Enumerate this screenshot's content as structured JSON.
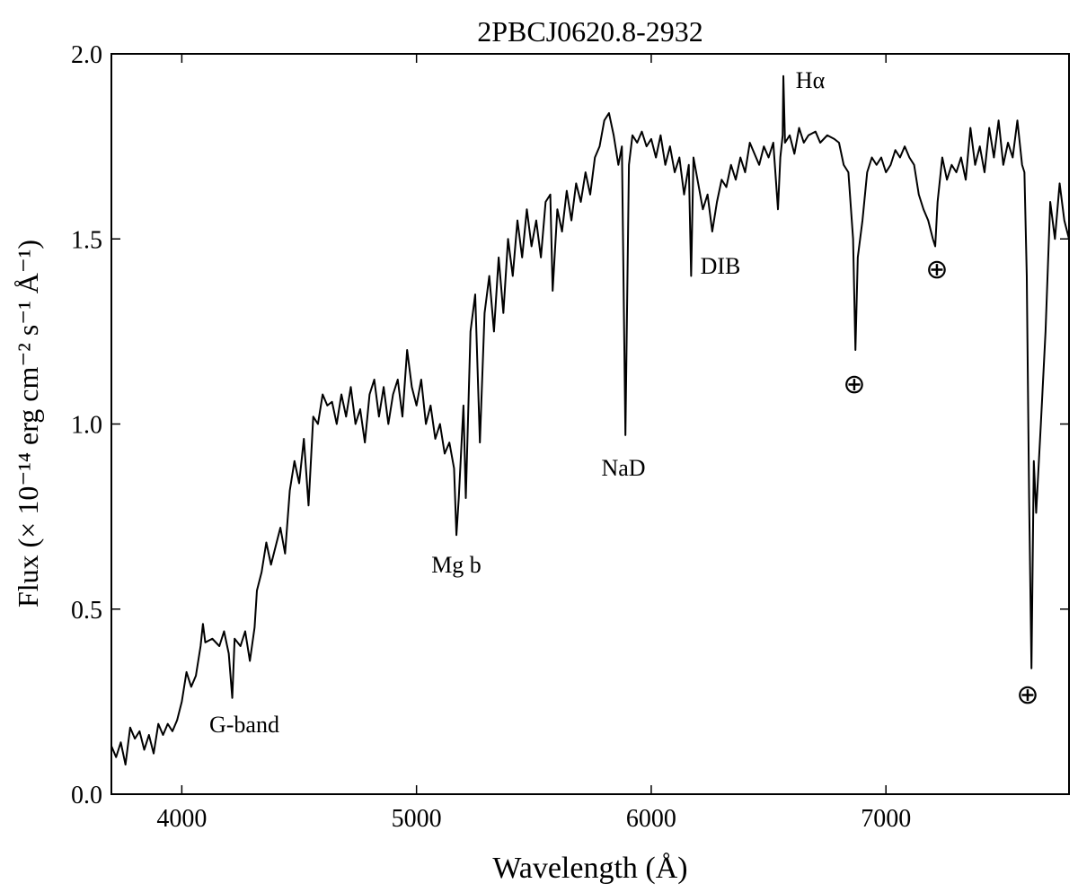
{
  "chart_data": {
    "type": "line",
    "title": "2PBCJ0620.8-2932",
    "x_label": "Wavelength (Å)",
    "y_label": "Flux (× 10⁻¹⁴ erg cm⁻² s⁻¹ Å⁻¹)",
    "color": "#000000",
    "xlim": [
      3700,
      7780
    ],
    "ylim": [
      0,
      2
    ],
    "xticks": [
      4000,
      5000,
      6000,
      7000
    ],
    "yticks": [
      {
        "value": 0,
        "label": "0.0"
      },
      {
        "value": 0.5,
        "label": "0.5"
      },
      {
        "value": 1,
        "label": "1.0"
      },
      {
        "value": 1.5,
        "label": "1.5"
      },
      {
        "value": 2,
        "label": "2.0"
      }
    ],
    "annotations": [
      "G-band",
      "Mg b",
      "NaD",
      "DIB",
      "Hα",
      "⊕",
      "⊕",
      "⊕"
    ],
    "x": [
      3700,
      3720,
      3740,
      3760,
      3780,
      3800,
      3820,
      3840,
      3860,
      3880,
      3900,
      3920,
      3940,
      3960,
      3980,
      4000,
      4020,
      4040,
      4060,
      4080,
      4090,
      4100,
      4130,
      4160,
      4180,
      4200,
      4215,
      4225,
      4250,
      4270,
      4290,
      4310,
      4320,
      4340,
      4360,
      4380,
      4400,
      4420,
      4440,
      4460,
      4480,
      4500,
      4520,
      4540,
      4560,
      4580,
      4600,
      4620,
      4640,
      4660,
      4680,
      4700,
      4720,
      4740,
      4760,
      4780,
      4800,
      4820,
      4840,
      4860,
      4880,
      4900,
      4920,
      4940,
      4960,
      4980,
      5000,
      5020,
      5040,
      5060,
      5080,
      5100,
      5120,
      5140,
      5160,
      5170,
      5180,
      5200,
      5210,
      5230,
      5250,
      5260,
      5270,
      5290,
      5310,
      5330,
      5350,
      5370,
      5390,
      5410,
      5430,
      5450,
      5470,
      5490,
      5510,
      5530,
      5550,
      5570,
      5580,
      5600,
      5620,
      5640,
      5660,
      5680,
      5700,
      5720,
      5740,
      5760,
      5780,
      5800,
      5820,
      5840,
      5860,
      5875,
      5890,
      5905,
      5920,
      5940,
      5960,
      5980,
      6000,
      6020,
      6040,
      6060,
      6080,
      6100,
      6120,
      6140,
      6160,
      6170,
      6180,
      6200,
      6220,
      6240,
      6260,
      6280,
      6300,
      6320,
      6340,
      6360,
      6380,
      6400,
      6420,
      6440,
      6460,
      6480,
      6500,
      6520,
      6540,
      6550,
      6560,
      6563,
      6570,
      6590,
      6610,
      6630,
      6650,
      6670,
      6700,
      6720,
      6750,
      6780,
      6800,
      6820,
      6840,
      6860,
      6870,
      6880,
      6900,
      6920,
      6940,
      6960,
      6980,
      7000,
      7020,
      7040,
      7060,
      7080,
      7100,
      7120,
      7140,
      7160,
      7180,
      7200,
      7210,
      7220,
      7240,
      7260,
      7280,
      7300,
      7320,
      7340,
      7360,
      7380,
      7400,
      7420,
      7440,
      7460,
      7480,
      7500,
      7520,
      7540,
      7560,
      7580,
      7590,
      7600,
      7610,
      7620,
      7630,
      7640,
      7660,
      7680,
      7700,
      7720,
      7740,
      7760,
      7780
    ],
    "values": [
      0.13,
      0.1,
      0.14,
      0.08,
      0.18,
      0.15,
      0.17,
      0.12,
      0.16,
      0.11,
      0.19,
      0.16,
      0.19,
      0.17,
      0.2,
      0.25,
      0.33,
      0.29,
      0.32,
      0.4,
      0.46,
      0.41,
      0.42,
      0.4,
      0.44,
      0.38,
      0.26,
      0.42,
      0.4,
      0.44,
      0.36,
      0.45,
      0.55,
      0.6,
      0.68,
      0.62,
      0.67,
      0.72,
      0.65,
      0.82,
      0.9,
      0.84,
      0.96,
      0.78,
      1.02,
      1.0,
      1.08,
      1.05,
      1.06,
      1.0,
      1.08,
      1.02,
      1.1,
      1.0,
      1.04,
      0.95,
      1.08,
      1.12,
      1.02,
      1.1,
      1.0,
      1.08,
      1.12,
      1.02,
      1.2,
      1.1,
      1.05,
      1.12,
      1.0,
      1.05,
      0.96,
      1.0,
      0.92,
      0.95,
      0.88,
      0.7,
      0.8,
      1.05,
      0.8,
      1.25,
      1.35,
      1.15,
      0.95,
      1.3,
      1.4,
      1.25,
      1.45,
      1.3,
      1.5,
      1.4,
      1.55,
      1.45,
      1.58,
      1.48,
      1.55,
      1.45,
      1.6,
      1.62,
      1.36,
      1.58,
      1.52,
      1.63,
      1.55,
      1.65,
      1.6,
      1.68,
      1.62,
      1.72,
      1.75,
      1.82,
      1.84,
      1.78,
      1.7,
      1.75,
      0.97,
      1.7,
      1.78,
      1.76,
      1.79,
      1.75,
      1.77,
      1.72,
      1.78,
      1.7,
      1.75,
      1.68,
      1.72,
      1.62,
      1.7,
      1.4,
      1.72,
      1.65,
      1.58,
      1.62,
      1.52,
      1.6,
      1.66,
      1.64,
      1.7,
      1.66,
      1.72,
      1.68,
      1.76,
      1.73,
      1.7,
      1.75,
      1.72,
      1.76,
      1.58,
      1.72,
      1.78,
      1.94,
      1.76,
      1.78,
      1.73,
      1.8,
      1.76,
      1.78,
      1.79,
      1.76,
      1.78,
      1.77,
      1.76,
      1.7,
      1.68,
      1.5,
      1.2,
      1.45,
      1.55,
      1.68,
      1.72,
      1.7,
      1.72,
      1.68,
      1.7,
      1.74,
      1.72,
      1.75,
      1.72,
      1.7,
      1.62,
      1.58,
      1.55,
      1.5,
      1.48,
      1.6,
      1.72,
      1.66,
      1.7,
      1.68,
      1.72,
      1.66,
      1.8,
      1.7,
      1.75,
      1.68,
      1.8,
      1.72,
      1.82,
      1.7,
      1.76,
      1.72,
      1.82,
      1.7,
      1.68,
      1.4,
      0.8,
      0.34,
      0.9,
      0.76,
      1.0,
      1.25,
      1.6,
      1.5,
      1.65,
      1.55,
      1.5
    ]
  }
}
